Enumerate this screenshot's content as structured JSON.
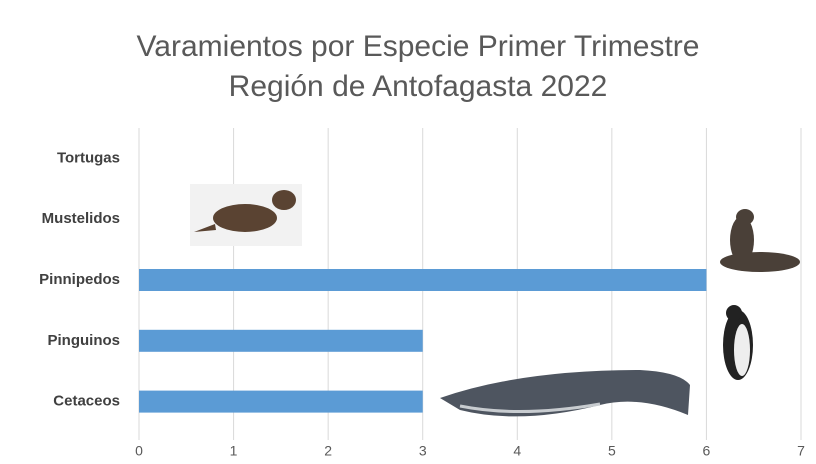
{
  "chart_data": {
    "type": "barh",
    "title": "Varamientos por Especie Primer Trimestre",
    "subtitle": "Región de Antofagasta 2022",
    "categories": [
      "Tortugas",
      "Mustelidos",
      "Pinnipedos",
      "Pinguinos",
      "Cetaceos"
    ],
    "values": [
      0,
      0,
      6,
      3,
      3
    ],
    "color": "#5b9bd5",
    "xlim": [
      0,
      7
    ],
    "xticks": [
      0,
      1,
      2,
      3,
      4,
      5,
      6,
      7
    ],
    "grid": true
  }
}
